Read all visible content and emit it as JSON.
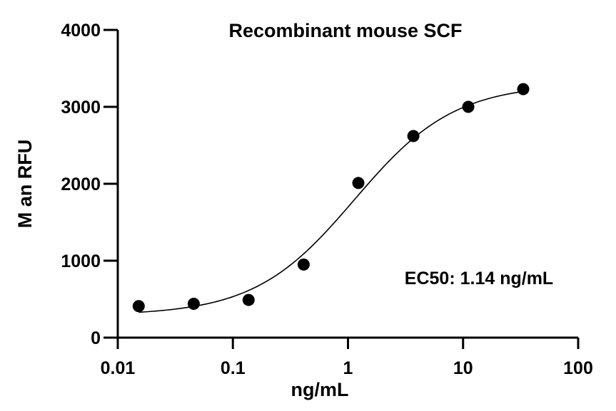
{
  "chart_data": {
    "type": "scatter",
    "title": "Recombinant mouse SCF",
    "xlabel": "ng/mL",
    "ylabel": "M  an RFU",
    "x_scale": "log",
    "xlim": [
      0.01,
      100
    ],
    "ylim": [
      0,
      4000
    ],
    "x_ticks": [
      {
        "value": 0.01,
        "label": "0.01"
      },
      {
        "value": 0.1,
        "label": "0.1"
      },
      {
        "value": 1,
        "label": "1"
      },
      {
        "value": 10,
        "label": "10"
      },
      {
        "value": 100,
        "label": "100"
      }
    ],
    "y_ticks": [
      {
        "value": 0,
        "label": "0"
      },
      {
        "value": 1000,
        "label": "1000"
      },
      {
        "value": 2000,
        "label": "2000"
      },
      {
        "value": 3000,
        "label": "3000"
      },
      {
        "value": 4000,
        "label": "4000"
      }
    ],
    "series": [
      {
        "name": "Recombinant mouse SCF",
        "x": [
          0.0152,
          0.0457,
          0.137,
          0.412,
          1.23,
          3.7,
          11.1,
          33.3
        ],
        "y": [
          410,
          440,
          490,
          950,
          2010,
          2620,
          3000,
          3230
        ]
      }
    ],
    "fit": {
      "model": "4PL",
      "bottom": 290,
      "top": 3300,
      "ec50": 1.14,
      "hill": 1.0
    },
    "annotation": "EC50: 1.14 ng/mL",
    "grid": false,
    "legend": "none",
    "colors": {
      "points": "#000000",
      "line": "#000000",
      "axes": "#000000"
    }
  }
}
